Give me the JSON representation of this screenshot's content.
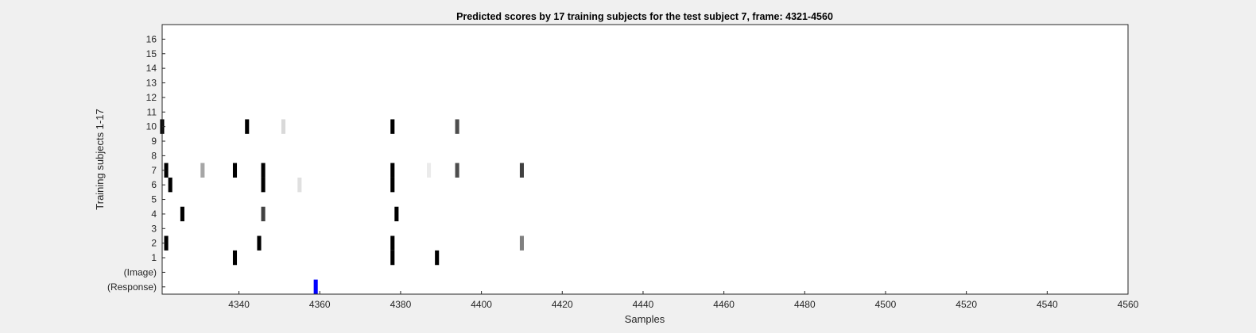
{
  "chart_data": {
    "type": "heatmap",
    "title": "Predicted scores by 17 training subjects for the test subject 7, frame: 4321-4560",
    "xlabel": "Samples",
    "ylabel": "Training subjects 1-17",
    "xlim": [
      4321,
      4560
    ],
    "xticks": [
      4340,
      4360,
      4380,
      4400,
      4420,
      4440,
      4460,
      4480,
      4500,
      4520,
      4540,
      4560
    ],
    "ylim": [
      -1.5,
      17
    ],
    "yticks": [
      {
        "value": -1,
        "label": "(Response)"
      },
      {
        "value": 0,
        "label": "(Image)"
      },
      {
        "value": 1,
        "label": "1"
      },
      {
        "value": 2,
        "label": "2"
      },
      {
        "value": 3,
        "label": "3"
      },
      {
        "value": 4,
        "label": "4"
      },
      {
        "value": 5,
        "label": "5"
      },
      {
        "value": 6,
        "label": "6"
      },
      {
        "value": 7,
        "label": "7"
      },
      {
        "value": 8,
        "label": "8"
      },
      {
        "value": 9,
        "label": "9"
      },
      {
        "value": 10,
        "label": "10"
      },
      {
        "value": 11,
        "label": "11"
      },
      {
        "value": 12,
        "label": "12"
      },
      {
        "value": 13,
        "label": "13"
      },
      {
        "value": 14,
        "label": "14"
      },
      {
        "value": 15,
        "label": "15"
      },
      {
        "value": 16,
        "label": "16"
      }
    ],
    "colormap": "gray (white = 0, black = 1)",
    "response_color": "#0000ff",
    "grid": false,
    "cells": [
      {
        "row": 10,
        "x": 4321,
        "score": 1.0
      },
      {
        "row": 10,
        "x": 4342,
        "score": 1.0
      },
      {
        "row": 10,
        "x": 4351,
        "score": 0.15
      },
      {
        "row": 10,
        "x": 4378,
        "score": 1.0
      },
      {
        "row": 10,
        "x": 4394,
        "score": 0.7
      },
      {
        "row": 7,
        "x": 4322,
        "score": 1.0
      },
      {
        "row": 7,
        "x": 4331,
        "score": 0.35
      },
      {
        "row": 7,
        "x": 4339,
        "score": 1.0
      },
      {
        "row": 7,
        "x": 4346,
        "score": 1.0
      },
      {
        "row": 7,
        "x": 4378,
        "score": 1.0
      },
      {
        "row": 7,
        "x": 4387,
        "score": 0.08
      },
      {
        "row": 7,
        "x": 4394,
        "score": 0.7
      },
      {
        "row": 7,
        "x": 4410,
        "score": 0.75
      },
      {
        "row": 6,
        "x": 4323,
        "score": 1.0
      },
      {
        "row": 6,
        "x": 4346,
        "score": 1.0
      },
      {
        "row": 6,
        "x": 4355,
        "score": 0.12
      },
      {
        "row": 6,
        "x": 4378,
        "score": 1.0
      },
      {
        "row": 4,
        "x": 4326,
        "score": 1.0
      },
      {
        "row": 4,
        "x": 4346,
        "score": 0.75
      },
      {
        "row": 4,
        "x": 4379,
        "score": 1.0
      },
      {
        "row": 2,
        "x": 4322,
        "score": 1.0
      },
      {
        "row": 2,
        "x": 4345,
        "score": 1.0
      },
      {
        "row": 2,
        "x": 4378,
        "score": 1.0
      },
      {
        "row": 2,
        "x": 4410,
        "score": 0.5
      },
      {
        "row": 1,
        "x": 4339,
        "score": 1.0
      },
      {
        "row": 1,
        "x": 4378,
        "score": 1.0
      },
      {
        "row": 1,
        "x": 4389,
        "score": 1.0
      }
    ],
    "response": [
      {
        "row": -1,
        "x": 4359
      }
    ]
  }
}
